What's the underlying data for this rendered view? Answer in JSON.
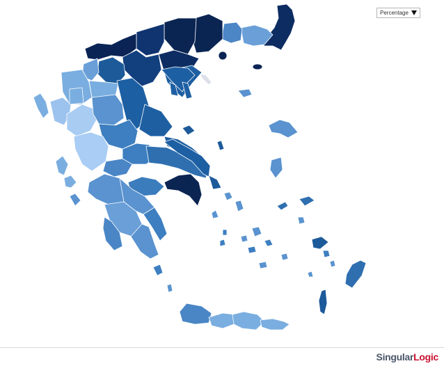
{
  "dropdown": {
    "selected": "Percentage"
  },
  "footer": {
    "logo": {
      "part1": "Singular",
      "part2": "Logic"
    }
  }
}
